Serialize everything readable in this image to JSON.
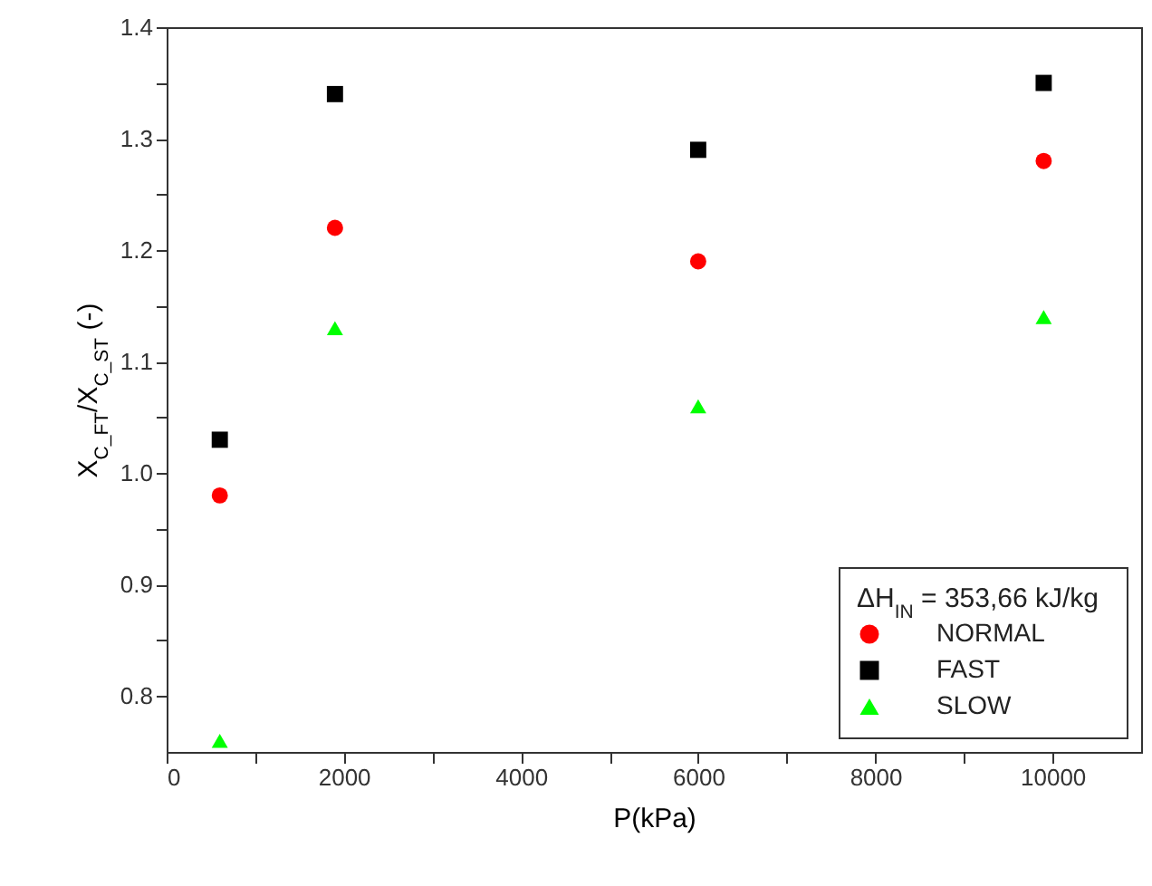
{
  "chart_data": {
    "type": "scatter",
    "xlabel": "P(kPa)",
    "ylabel": "X$_{C_FT}$/X$_{C_ST}$ (-)",
    "legend_title": "ΔH$_{IN}$ = 353,66 kJ/kg",
    "x": [
      600,
      1900,
      6000,
      9900
    ],
    "series": [
      {
        "name": "NORMAL",
        "color": "#ff0000",
        "marker": "circle",
        "values": [
          0.98,
          1.22,
          1.19,
          1.28
        ]
      },
      {
        "name": "FAST",
        "color": "#000000",
        "marker": "square",
        "values": [
          1.03,
          1.34,
          1.29,
          1.35
        ]
      },
      {
        "name": "SLOW",
        "color": "#00ff00",
        "marker": "triangle",
        "values": [
          0.76,
          1.13,
          1.06,
          1.14
        ]
      }
    ],
    "xlim": [
      0,
      11000
    ],
    "xticks": [
      0,
      {
        "value": 1000,
        "label": null
      },
      2000,
      {
        "value": 3000,
        "label": null
      },
      4000,
      {
        "value": 5000,
        "label": null
      },
      6000,
      {
        "value": 7000,
        "label": null
      },
      8000,
      {
        "value": 9000,
        "label": null
      },
      10000
    ],
    "ylim": [
      0.75,
      1.4
    ],
    "yticks": [
      0.8,
      {
        "value": 0.85,
        "label": null
      },
      0.9,
      {
        "value": 0.95,
        "label": null
      },
      {
        "value": 1.0,
        "label": "1.0"
      },
      {
        "value": 1.05,
        "label": null
      },
      1.1,
      {
        "value": 1.15,
        "label": null
      },
      1.2,
      {
        "value": 1.25,
        "label": null
      },
      1.3,
      {
        "value": 1.35,
        "label": null
      },
      1.4
    ],
    "grid": false,
    "legend": "bottom right"
  }
}
